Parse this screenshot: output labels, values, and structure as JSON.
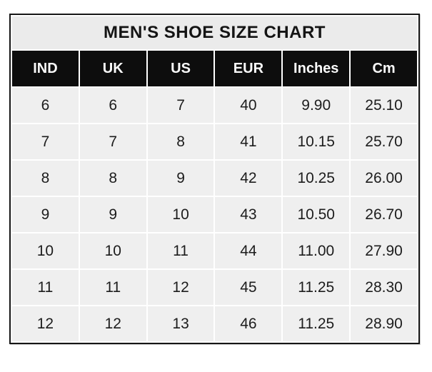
{
  "colors": {
    "page_background": "#ffffff",
    "title_row_background": "#ebebeb",
    "header_row_background": "#0d0d0d",
    "header_text": "#fafafa",
    "data_cell_background": "#efefef",
    "data_text": "#1c1c1c",
    "gridline": "#ffffff",
    "outer_border": "#161616"
  },
  "chart_data": {
    "type": "table",
    "title": "MEN'S SHOE SIZE CHART",
    "columns": [
      "IND",
      "UK",
      "US",
      "EUR",
      "Inches",
      "Cm"
    ],
    "rows": [
      [
        "6",
        "6",
        "7",
        "40",
        "9.90",
        "25.10"
      ],
      [
        "7",
        "7",
        "8",
        "41",
        "10.15",
        "25.70"
      ],
      [
        "8",
        "8",
        "9",
        "42",
        "10.25",
        "26.00"
      ],
      [
        "9",
        "9",
        "10",
        "43",
        "10.50",
        "26.70"
      ],
      [
        "10",
        "10",
        "11",
        "44",
        "11.00",
        "27.90"
      ],
      [
        "11",
        "11",
        "12",
        "45",
        "11.25",
        "28.30"
      ],
      [
        "12",
        "12",
        "13",
        "46",
        "11.25",
        "28.90"
      ]
    ]
  }
}
